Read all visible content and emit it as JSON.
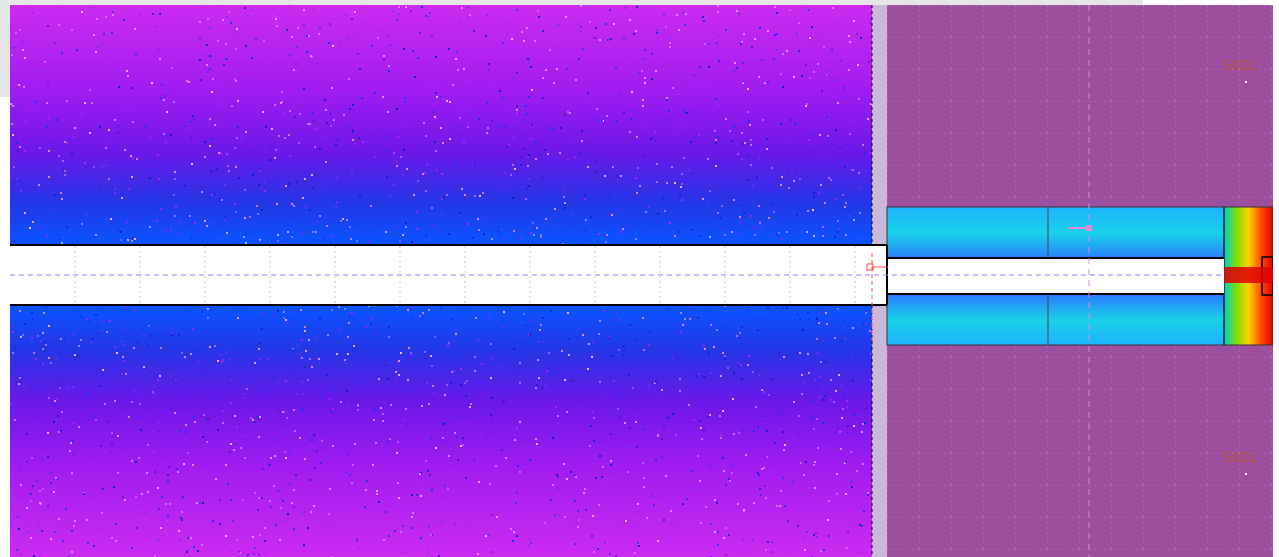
{
  "window": {
    "title": ""
  },
  "labels": {
    "soil_top": "SOIL",
    "soil_bottom": "SOIL"
  },
  "colors": {
    "soil": "#9b4f9e",
    "soil_grid": "#b77ab9",
    "bore": "#ffffff",
    "bore_outline": "#000000",
    "centerline": "#8080ff",
    "axis_marker": "#ff5b5b",
    "hot_core": "#e00000",
    "field_far": "#c000e6",
    "field_near": "#0044ff"
  }
}
